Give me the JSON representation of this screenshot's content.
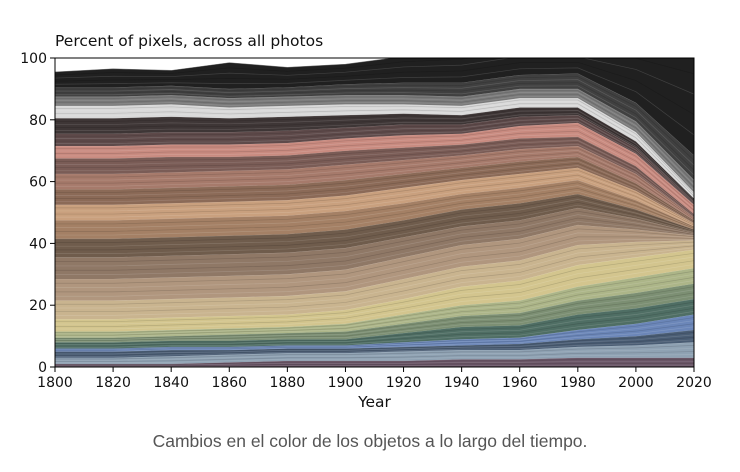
{
  "chart_data": {
    "type": "area",
    "title": "Percent of pixels, across all photos",
    "xlabel": "Year",
    "ylabel": "",
    "xlim": [
      1800,
      2020
    ],
    "ylim": [
      0,
      100
    ],
    "x_ticks": [
      1800,
      1820,
      1840,
      1860,
      1880,
      1900,
      1920,
      1940,
      1960,
      1980,
      2000,
      2020
    ],
    "y_ticks": [
      0,
      20,
      40,
      60,
      80,
      100
    ],
    "grid": false,
    "legend": "none",
    "x": [
      1800,
      1820,
      1840,
      1860,
      1880,
      1900,
      1920,
      1940,
      1960,
      1980,
      2000,
      2020
    ],
    "series": [
      {
        "color": "#6a5566",
        "values": [
          1,
          1,
          1,
          1.5,
          2,
          2,
          2,
          2.5,
          2.5,
          3,
          3,
          3
        ]
      },
      {
        "color": "#8fa2b3",
        "values": [
          2,
          2,
          2.5,
          2.5,
          2.5,
          2.5,
          3,
          3,
          3,
          3.5,
          4,
          5
        ]
      },
      {
        "color": "#4a5d74",
        "values": [
          2,
          2,
          2,
          1.5,
          1.5,
          1.5,
          1.5,
          1.5,
          2,
          2.5,
          3,
          4
        ]
      },
      {
        "color": "#6b86b8",
        "values": [
          1,
          1,
          1,
          1,
          1,
          1,
          1.5,
          2,
          2,
          3,
          4,
          5
        ]
      },
      {
        "color": "#4f6e64",
        "values": [
          2,
          2,
          2,
          2,
          2,
          2,
          3,
          4,
          4,
          5,
          5,
          5
        ]
      },
      {
        "color": "#7c8f73",
        "values": [
          1.5,
          1.5,
          1.5,
          2,
          2,
          2.5,
          3,
          3.5,
          4,
          4.5,
          5,
          5
        ]
      },
      {
        "color": "#acb588",
        "values": [
          2,
          2,
          2,
          2,
          2,
          2.5,
          3,
          3.5,
          4,
          4.5,
          5,
          5
        ]
      },
      {
        "color": "#d3c58e",
        "values": [
          4,
          4,
          4,
          4,
          4,
          4.5,
          5,
          6,
          6.5,
          7,
          6.5,
          6
        ]
      },
      {
        "color": "#c9b48f",
        "values": [
          6,
          6,
          6,
          6,
          6,
          6,
          6.5,
          6.5,
          6.5,
          6.5,
          5,
          3
        ]
      },
      {
        "color": "#b0967e",
        "values": [
          7,
          7,
          7,
          7,
          7,
          7,
          7,
          7,
          7,
          6.5,
          4,
          1.5
        ]
      },
      {
        "color": "#8f7866",
        "values": [
          7,
          7,
          7,
          7,
          7,
          7,
          6.5,
          6,
          6,
          5.5,
          3.5,
          1
        ]
      },
      {
        "color": "#6f5c4c",
        "values": [
          6,
          6,
          6,
          6,
          6,
          6,
          5.5,
          5.5,
          5.5,
          4.5,
          3,
          1
        ]
      },
      {
        "color": "#a48065",
        "values": [
          6,
          6,
          6,
          6,
          6,
          6,
          5.5,
          5,
          5,
          4.5,
          3,
          1
        ]
      },
      {
        "color": "#c9a07e",
        "values": [
          5,
          5,
          5,
          5,
          5,
          5,
          5,
          4.5,
          4.5,
          4,
          3,
          1
        ]
      },
      {
        "color": "#8b6a57",
        "values": [
          5,
          5,
          5,
          5,
          5,
          5,
          4.5,
          4,
          4,
          3.5,
          2.5,
          1
        ]
      },
      {
        "color": "#a67a6b",
        "values": [
          5,
          5,
          5,
          5,
          5,
          5,
          4.5,
          4,
          4,
          3.5,
          3,
          1
        ]
      },
      {
        "color": "#7a5c56",
        "values": [
          5,
          5,
          5,
          4.5,
          4.5,
          4.5,
          4,
          3.5,
          3.5,
          3,
          2.5,
          1
        ]
      },
      {
        "color": "#c98b80",
        "values": [
          4,
          4,
          4,
          4,
          4,
          4,
          4,
          3.5,
          4,
          4.5,
          4,
          3
        ]
      },
      {
        "color": "#5e4a4a",
        "values": [
          4,
          4,
          4,
          4,
          4,
          3.5,
          3.5,
          3,
          3,
          2.5,
          2,
          1
        ]
      },
      {
        "color": "#3e3636",
        "values": [
          5,
          5,
          5,
          4.5,
          4.5,
          4,
          3.5,
          3,
          3,
          2.5,
          2,
          1
        ]
      },
      {
        "color": "#d9d9d9",
        "values": [
          4,
          4,
          4,
          3.5,
          3.5,
          3.5,
          3,
          3,
          3,
          3,
          3,
          2
        ]
      },
      {
        "color": "#7a7a7a",
        "values": [
          3,
          3,
          3,
          3,
          3,
          3,
          3,
          3,
          3,
          3,
          3.5,
          4
        ]
      },
      {
        "color": "#404040",
        "values": [
          3,
          3,
          3,
          3,
          3,
          3.5,
          4,
          4.5,
          4.5,
          5,
          6,
          8
        ]
      },
      {
        "color": "#202020",
        "values": [
          5,
          6,
          5,
          8.5,
          6.5,
          6.5,
          8.5,
          9.5,
          10,
          9,
          18,
          33
        ]
      }
    ]
  },
  "caption": "Cambios en el color de los objetos a lo largo del tiempo."
}
